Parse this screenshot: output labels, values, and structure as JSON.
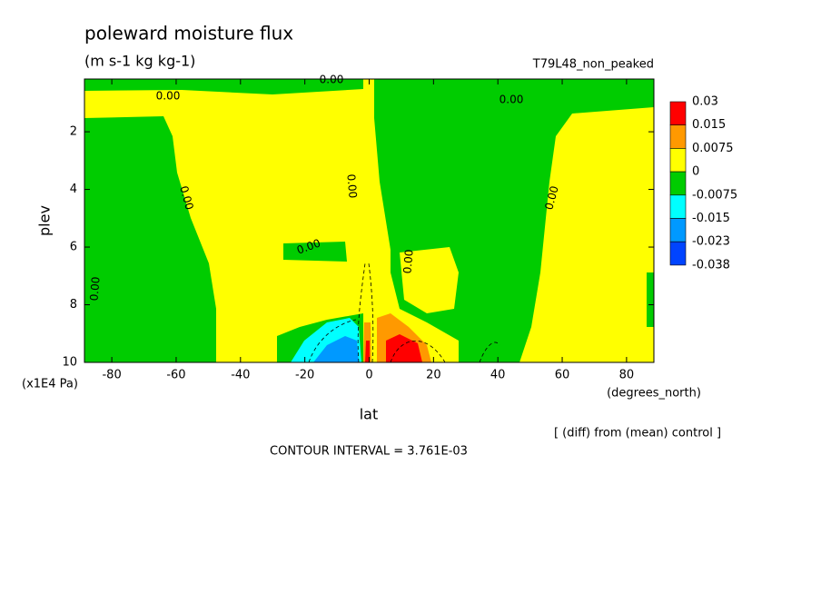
{
  "chart_data": {
    "type": "contour",
    "title": "poleward moisture flux",
    "subtitle": "(m s-1 kg kg-1)",
    "run_label": "T79L48_non_peaked",
    "x_label": "lat",
    "x_unit_label": "(degrees_north)",
    "y_label": "plev",
    "y_unit_label": "(x1E4 Pa)",
    "xlim": [
      -88.5,
      88.5
    ],
    "xticks": [
      -80,
      -60,
      -40,
      -20,
      0,
      20,
      40,
      60,
      80
    ],
    "ylim": [
      10,
      0.17
    ],
    "yticks": [
      2,
      4,
      6,
      8,
      10
    ],
    "levels": [
      0.03,
      0.015,
      0.0075,
      0,
      -0.0075,
      -0.015,
      -0.023,
      -0.038
    ],
    "colors": [
      "#ff0000",
      "#ff9900",
      "#ffff00",
      "#00cc00",
      "#00ffff",
      "#0099ff",
      "#0044ff"
    ],
    "contour_labels": [
      "0.00",
      "0.00",
      "0.00",
      "0.00",
      "0.00",
      "0.00",
      "0.00",
      "0.00",
      "0.00"
    ],
    "note": "[ (diff) from (mean) control ]",
    "contour_interval": "CONTOUR INTERVAL = 3.761E-03"
  }
}
